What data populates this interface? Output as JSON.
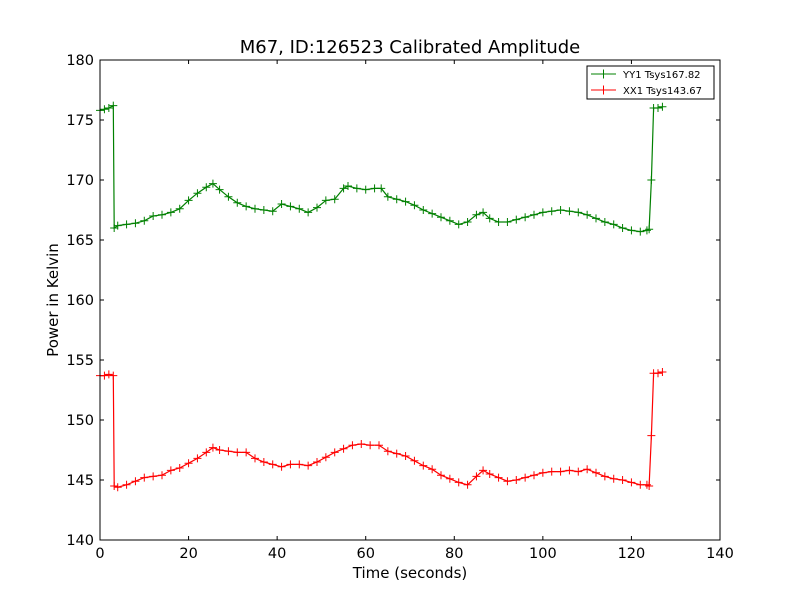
{
  "chart_data": {
    "type": "line",
    "title": "M67, ID:126523 Calibrated Amplitude",
    "xlabel": "Time (seconds)",
    "ylabel": "Power in Kelvin",
    "xlim": [
      0,
      140
    ],
    "ylim": [
      140,
      180
    ],
    "xticks": [
      0,
      20,
      40,
      60,
      80,
      100,
      120,
      140
    ],
    "yticks": [
      140,
      145,
      150,
      155,
      160,
      165,
      170,
      175,
      180
    ],
    "grid": false,
    "legend_position": "top-right",
    "marker": "+",
    "series": [
      {
        "name": "YY1 Tsys167.82",
        "color": "#008000",
        "x": [
          0,
          1,
          2,
          3,
          3.2,
          4,
          6,
          8,
          10,
          12,
          14,
          16,
          18,
          20,
          22,
          24,
          25.5,
          27,
          29,
          31,
          33,
          35,
          37,
          39,
          41,
          43,
          45,
          47,
          49,
          51,
          53,
          55,
          56,
          58,
          60,
          62,
          63.5,
          65,
          67,
          69,
          71,
          73,
          75,
          77,
          79,
          81,
          83,
          85,
          86.5,
          88,
          90,
          92,
          94,
          96,
          98,
          100,
          102,
          104,
          106,
          108,
          110,
          112,
          114,
          116,
          118,
          120,
          122,
          123.5,
          124,
          124.5,
          125,
          126,
          127
        ],
        "values": [
          175.8,
          175.9,
          176.0,
          176.2,
          166.0,
          166.2,
          166.3,
          166.4,
          166.6,
          167.0,
          167.1,
          167.3,
          167.6,
          168.3,
          168.9,
          169.4,
          169.7,
          169.2,
          168.6,
          168.1,
          167.8,
          167.6,
          167.5,
          167.4,
          168.0,
          167.8,
          167.6,
          167.3,
          167.7,
          168.3,
          168.4,
          169.3,
          169.5,
          169.3,
          169.2,
          169.3,
          169.3,
          168.6,
          168.4,
          168.2,
          167.9,
          167.5,
          167.2,
          166.9,
          166.6,
          166.3,
          166.5,
          167.1,
          167.3,
          166.8,
          166.5,
          166.5,
          166.7,
          166.9,
          167.1,
          167.3,
          167.4,
          167.5,
          167.4,
          167.3,
          167.1,
          166.8,
          166.5,
          166.3,
          166.0,
          165.8,
          165.7,
          165.8,
          165.9,
          170.0,
          176.0,
          176.0,
          176.1
        ]
      },
      {
        "name": "XX1 Tsys143.67",
        "color": "#ff0000",
        "x": [
          0,
          1,
          2,
          3,
          3.2,
          4,
          6,
          8,
          10,
          12,
          14,
          16,
          18,
          20,
          22,
          24,
          25.5,
          27,
          29,
          31,
          33,
          35,
          37,
          39,
          41,
          43,
          45,
          47,
          49,
          51,
          53,
          55,
          57,
          59,
          61,
          63,
          65,
          67,
          69,
          71,
          73,
          75,
          77,
          79,
          81,
          83,
          85,
          86.5,
          88,
          90,
          92,
          94,
          96,
          98,
          100,
          102,
          104,
          106,
          108,
          110,
          112,
          114,
          116,
          118,
          120,
          122,
          123.5,
          124,
          124.5,
          125,
          126,
          127
        ],
        "values": [
          153.7,
          153.7,
          153.8,
          153.7,
          144.5,
          144.4,
          144.6,
          144.9,
          145.2,
          145.3,
          145.4,
          145.8,
          146.0,
          146.4,
          146.8,
          147.3,
          147.7,
          147.5,
          147.4,
          147.3,
          147.3,
          146.8,
          146.5,
          146.3,
          146.1,
          146.3,
          146.3,
          146.2,
          146.5,
          146.9,
          147.3,
          147.6,
          147.9,
          148.0,
          147.9,
          147.9,
          147.4,
          147.2,
          147.0,
          146.6,
          146.2,
          145.9,
          145.4,
          145.1,
          144.8,
          144.6,
          145.3,
          145.8,
          145.5,
          145.2,
          144.9,
          145.0,
          145.2,
          145.4,
          145.6,
          145.7,
          145.7,
          145.8,
          145.7,
          145.9,
          145.6,
          145.3,
          145.1,
          145.0,
          144.8,
          144.6,
          144.6,
          144.5,
          148.7,
          153.9,
          153.9,
          154.0
        ]
      }
    ]
  }
}
